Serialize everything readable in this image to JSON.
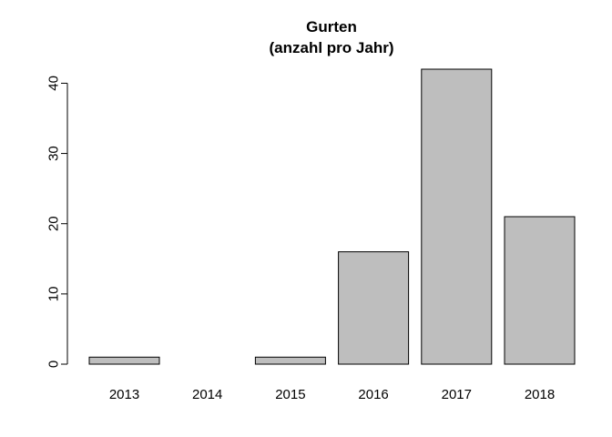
{
  "chart_data": {
    "type": "bar",
    "title": "Gurten",
    "subtitle": "(anzahl pro Jahr)",
    "xlabel": "",
    "ylabel": "",
    "categories": [
      "2013",
      "2014",
      "2015",
      "2016",
      "2017",
      "2018"
    ],
    "values": [
      1,
      0,
      1,
      16,
      42,
      21
    ],
    "ylim": [
      0,
      42
    ],
    "yticks": [
      0,
      10,
      20,
      30,
      40
    ],
    "grid": false,
    "legend": "none",
    "colors": {
      "bar_fill": "#bebebe",
      "bar_stroke": "#000000",
      "axis": "#000000",
      "background": "#ffffff"
    }
  }
}
